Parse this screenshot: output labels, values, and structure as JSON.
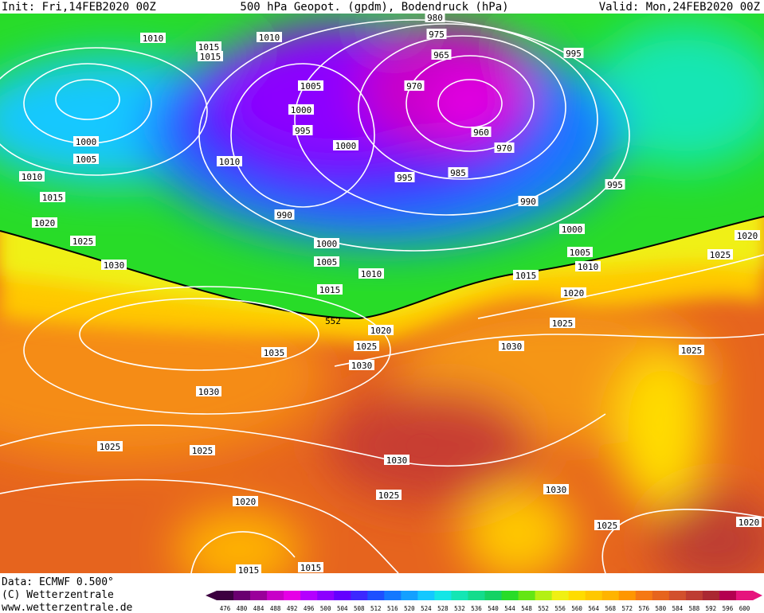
{
  "header": {
    "init": "Init: Fri,14FEB2020 00Z",
    "title": "500 hPa Geopot. (gpdm), Bodendruck (hPa)",
    "valid": "Valid: Mon,24FEB2020 00Z"
  },
  "isobar_labels": [
    "1010",
    "1015",
    "1015",
    "1010",
    "980",
    "975",
    "965",
    "995",
    "1005",
    "1000",
    "995",
    "1000",
    "970",
    "960",
    "970",
    "985",
    "995",
    "990",
    "995",
    "1000",
    "1005",
    "1010",
    "1010",
    "1015",
    "1020",
    "1025",
    "1030",
    "990",
    "1000",
    "1005",
    "1015",
    "1010",
    "1015",
    "1000",
    "1005",
    "1010",
    "1020",
    "1020",
    "1025",
    "1030",
    "552",
    "1035",
    "1030",
    "1030",
    "1025",
    "1025",
    "1025",
    "1020",
    "1025",
    "1025",
    "1030",
    "1025",
    "1030",
    "1025",
    "1020",
    "1015",
    "1015",
    "1020"
  ],
  "legend": {
    "values": [
      476,
      480,
      484,
      488,
      492,
      496,
      500,
      504,
      508,
      512,
      516,
      520,
      524,
      528,
      532,
      536,
      540,
      544,
      548,
      552,
      556,
      560,
      564,
      568,
      572,
      576,
      580,
      584,
      588,
      592,
      596,
      600
    ],
    "colors": [
      "#3c0040",
      "#6a0070",
      "#9a009a",
      "#c800c8",
      "#e600e6",
      "#b400ff",
      "#8c00ff",
      "#6400ff",
      "#3c28ff",
      "#1e50ff",
      "#1478ff",
      "#14a0ff",
      "#14c8ff",
      "#14e6e6",
      "#14e6b4",
      "#14dc8c",
      "#14d264",
      "#28dc28",
      "#64e614",
      "#b4f014",
      "#f0f014",
      "#ffdc00",
      "#ffc800",
      "#ffb400",
      "#ff9600",
      "#f57814",
      "#e6641e",
      "#d2502d",
      "#be3c32",
      "#aa2832",
      "#b40050",
      "#e6147d"
    ]
  },
  "footer": {
    "data": "Data: ECMWF  0.500°",
    "copyright": "(C) Wetterzentrale",
    "url": "www.wetterzentrale.de"
  }
}
